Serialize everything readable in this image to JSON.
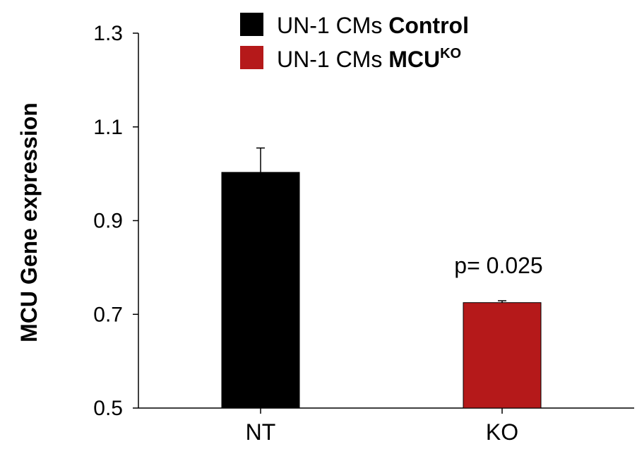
{
  "chart_data": {
    "type": "bar",
    "categories": [
      "NT",
      "KO"
    ],
    "series": [
      {
        "name": "UN-1 CMs Control",
        "name_plain": "UN-1 CMs ",
        "name_bold": "Control",
        "color": "#000000",
        "values": [
          1.003,
          null
        ],
        "errors": [
          0.052,
          null
        ]
      },
      {
        "name": "UN-1 CMs MCU KO",
        "name_plain": "UN-1 CMs ",
        "name_bold": "MCU",
        "name_sup": "KO",
        "color": "#b5191a",
        "values": [
          null,
          0.725
        ],
        "errors": [
          null,
          0.004
        ]
      }
    ],
    "ylabel": "MCU Gene expression",
    "ylim": [
      0.5,
      1.3
    ],
    "yticks": [
      "0.5",
      "0.7",
      "0.9",
      "1.1",
      "1.3"
    ],
    "annotations": [
      {
        "text": "p= 0.025",
        "category": "KO"
      }
    ],
    "legend": "top-center",
    "grid": false
  }
}
